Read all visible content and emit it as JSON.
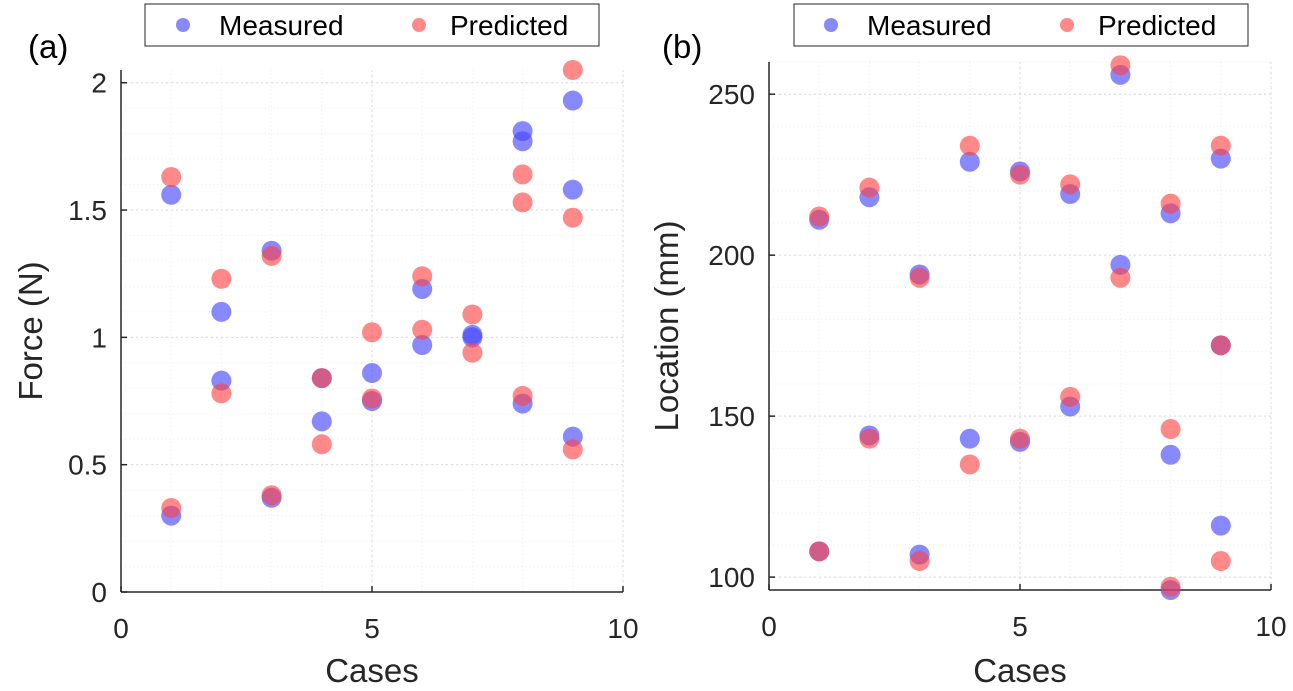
{
  "chart_data": [
    {
      "type": "scatter",
      "panel_label": "(a)",
      "xlabel": "Cases",
      "ylabel": "Force (N)",
      "xlim": [
        0,
        10
      ],
      "ylim": [
        0,
        2.05
      ],
      "xticks": [
        0,
        5,
        10
      ],
      "xtick_labels": [
        "0",
        "5",
        "10"
      ],
      "yticks": [
        0,
        0.5,
        1,
        1.5,
        2
      ],
      "ytick_labels": [
        "0",
        "0.5",
        "1",
        "1.5",
        "2"
      ],
      "grid": true,
      "legend_position": "top",
      "series": [
        {
          "name": "Measured",
          "color": "#4040ff",
          "points": [
            [
              1,
              1.56
            ],
            [
              1,
              0.3
            ],
            [
              2,
              1.1
            ],
            [
              2,
              0.83
            ],
            [
              3,
              1.34
            ],
            [
              3,
              0.37
            ],
            [
              4,
              0.84
            ],
            [
              4,
              0.67
            ],
            [
              5,
              0.86
            ],
            [
              5,
              0.75
            ],
            [
              6,
              1.19
            ],
            [
              6,
              0.97
            ],
            [
              7,
              1.01
            ],
            [
              7,
              1.0
            ],
            [
              8,
              1.81
            ],
            [
              8,
              1.77
            ],
            [
              8,
              0.74
            ],
            [
              9,
              1.93
            ],
            [
              9,
              1.58
            ],
            [
              9,
              0.61
            ]
          ]
        },
        {
          "name": "Predicted",
          "color": "#ff4040",
          "points": [
            [
              1,
              1.63
            ],
            [
              1,
              0.33
            ],
            [
              2,
              1.23
            ],
            [
              2,
              0.78
            ],
            [
              3,
              1.32
            ],
            [
              3,
              0.38
            ],
            [
              4,
              0.84
            ],
            [
              4,
              0.58
            ],
            [
              5,
              1.02
            ],
            [
              5,
              0.76
            ],
            [
              6,
              1.24
            ],
            [
              6,
              1.03
            ],
            [
              7,
              1.09
            ],
            [
              7,
              0.94
            ],
            [
              8,
              1.64
            ],
            [
              8,
              1.53
            ],
            [
              8,
              0.77
            ],
            [
              9,
              2.05
            ],
            [
              9,
              1.47
            ],
            [
              9,
              0.56
            ]
          ]
        }
      ]
    },
    {
      "type": "scatter",
      "panel_label": "(b)",
      "xlabel": "Cases",
      "ylabel": "Location (mm)",
      "xlim": [
        0,
        10
      ],
      "ylim": [
        96,
        260
      ],
      "xticks": [
        0,
        5,
        10
      ],
      "xtick_labels": [
        "0",
        "5",
        "10"
      ],
      "yticks": [
        100,
        150,
        200,
        250
      ],
      "ytick_labels": [
        "100",
        "150",
        "200",
        "250"
      ],
      "grid": true,
      "legend_position": "top",
      "series": [
        {
          "name": "Measured",
          "color": "#4040ff",
          "points": [
            [
              1,
              211
            ],
            [
              1,
              108
            ],
            [
              2,
              218
            ],
            [
              2,
              144
            ],
            [
              3,
              194
            ],
            [
              3,
              107
            ],
            [
              4,
              229
            ],
            [
              4,
              143
            ],
            [
              5,
              226
            ],
            [
              5,
              142
            ],
            [
              6,
              219
            ],
            [
              6,
              153
            ],
            [
              7,
              256
            ],
            [
              7,
              197
            ],
            [
              8,
              213
            ],
            [
              8,
              138
            ],
            [
              8,
              96
            ],
            [
              9,
              230
            ],
            [
              9,
              172
            ],
            [
              9,
              116
            ]
          ]
        },
        {
          "name": "Predicted",
          "color": "#ff4040",
          "points": [
            [
              1,
              212
            ],
            [
              1,
              108
            ],
            [
              2,
              221
            ],
            [
              2,
              143
            ],
            [
              3,
              193
            ],
            [
              3,
              105
            ],
            [
              4,
              234
            ],
            [
              4,
              135
            ],
            [
              5,
              225
            ],
            [
              5,
              143
            ],
            [
              6,
              222
            ],
            [
              6,
              156
            ],
            [
              7,
              259
            ],
            [
              7,
              193
            ],
            [
              8,
              216
            ],
            [
              8,
              146
            ],
            [
              8,
              97
            ],
            [
              9,
              234
            ],
            [
              9,
              172
            ],
            [
              9,
              105
            ]
          ]
        }
      ]
    }
  ]
}
